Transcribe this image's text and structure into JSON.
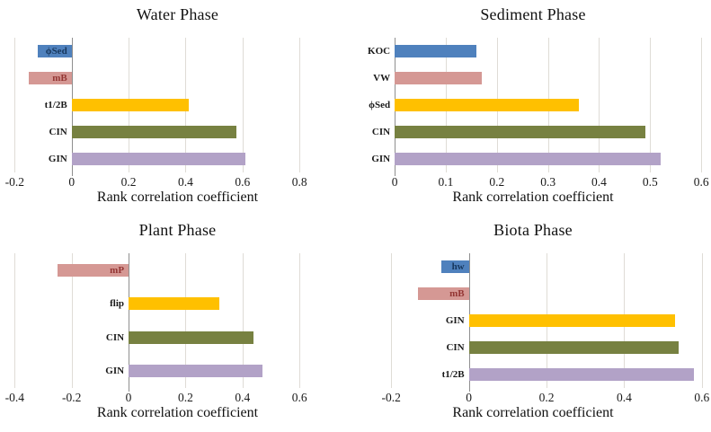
{
  "figure": {
    "background": "#ffffff",
    "grid_color": "#dfdcd6",
    "axis_color": "#8f8f8f",
    "palette": {
      "blue": "#4f81bd",
      "pink": "#d59894",
      "yellow": "#ffc000",
      "olive": "#778141",
      "purple": "#b2a2c7",
      "label_navy": "#17375d",
      "label_darkred": "#943634",
      "label_black": "#1a1a1a"
    }
  },
  "chart_data": [
    {
      "type": "bar",
      "orientation": "horizontal",
      "title": "Water Phase",
      "xlabel": "Rank correlation coefficient",
      "categories": [
        "ϕSed",
        "mB",
        "t1/2B",
        "CIN",
        "GIN"
      ],
      "values": [
        -0.12,
        -0.15,
        0.41,
        0.58,
        0.61
      ],
      "bar_colors": [
        "#4f81bd",
        "#d59894",
        "#ffc000",
        "#778141",
        "#b2a2c7"
      ],
      "label_colors": [
        "#17375d",
        "#943634",
        "#1a1a1a",
        "#1a1a1a",
        "#1a1a1a"
      ],
      "xlim": [
        -0.22,
        0.97
      ],
      "xticks": [
        -0.2,
        0,
        0.2,
        0.4,
        0.6,
        0.8
      ],
      "xtick_labels": [
        "-0.2",
        "0",
        "0.2",
        "0.4",
        "0.6",
        "0.8"
      ],
      "grid": true,
      "legend": false
    },
    {
      "type": "bar",
      "orientation": "horizontal",
      "title": "Sediment Phase",
      "xlabel": "Rank correlation coefficient",
      "categories": [
        "KOC",
        "VW",
        "ϕSed",
        "CIN",
        "GIN"
      ],
      "values": [
        0.16,
        0.17,
        0.36,
        0.49,
        0.52
      ],
      "bar_colors": [
        "#4f81bd",
        "#d59894",
        "#ffc000",
        "#778141",
        "#b2a2c7"
      ],
      "label_colors": [
        "#1a1a1a",
        "#1a1a1a",
        "#1a1a1a",
        "#1a1a1a",
        "#1a1a1a"
      ],
      "xlim": [
        -0.06,
        0.605
      ],
      "xticks": [
        0,
        0.1,
        0.2,
        0.3,
        0.4,
        0.5,
        0.6
      ],
      "xtick_labels": [
        "0",
        "0.1",
        "0.2",
        "0.3",
        "0.4",
        "0.5",
        "0.6"
      ],
      "grid": true,
      "legend": false
    },
    {
      "type": "bar",
      "orientation": "horizontal",
      "title": "Plant Phase",
      "xlabel": "Rank correlation coefficient",
      "categories": [
        "mP",
        "flip",
        "CIN",
        "GIN"
      ],
      "values": [
        -0.25,
        0.32,
        0.44,
        0.47
      ],
      "bar_colors": [
        "#d59894",
        "#ffc000",
        "#778141",
        "#b2a2c7"
      ],
      "label_colors": [
        "#943634",
        "#1a1a1a",
        "#1a1a1a",
        "#1a1a1a"
      ],
      "xlim": [
        -0.42,
        0.77
      ],
      "xticks": [
        -0.4,
        -0.2,
        0,
        0.2,
        0.4,
        0.6
      ],
      "xtick_labels": [
        "-0.4",
        "-0.2",
        "0",
        "0.2",
        "0.4",
        "0.6"
      ],
      "grid": true,
      "legend": false
    },
    {
      "type": "bar",
      "orientation": "horizontal",
      "title": "Biota Phase",
      "xlabel": "Rank correlation coefficient",
      "categories": [
        "hw",
        "mB",
        "GIN",
        "CIN",
        "t1/2B"
      ],
      "values": [
        -0.07,
        -0.13,
        0.53,
        0.54,
        0.58
      ],
      "bar_colors": [
        "#4f81bd",
        "#d59894",
        "#ffc000",
        "#778141",
        "#b2a2c7"
      ],
      "label_colors": [
        "#17375d",
        "#943634",
        "#1a1a1a",
        "#1a1a1a",
        "#1a1a1a"
      ],
      "xlim": [
        -0.27,
        0.605
      ],
      "xticks": [
        -0.2,
        0,
        0.2,
        0.4,
        0.6
      ],
      "xtick_labels": [
        "-0.2",
        "0",
        "0.2",
        "0.4",
        "0.6"
      ],
      "grid": true,
      "legend": false
    }
  ]
}
